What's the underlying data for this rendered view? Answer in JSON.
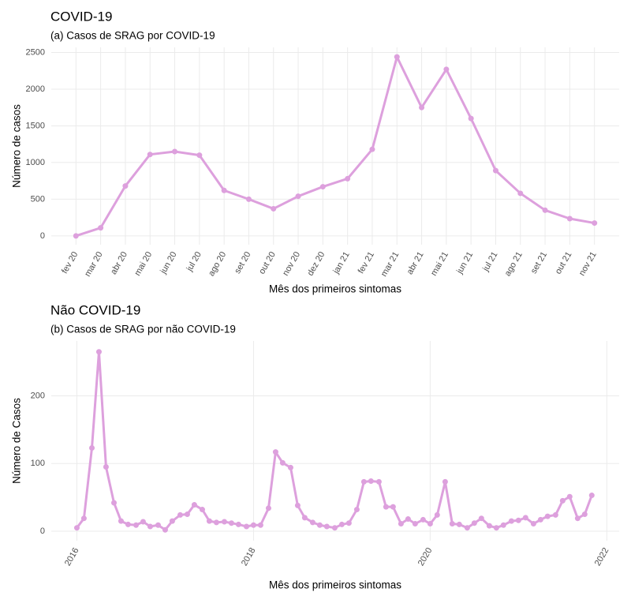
{
  "chart_data": [
    {
      "type": "line",
      "title": "COVID-19",
      "subtitle": "(a) Casos de SRAG por COVID-19",
      "x_label": "Mês dos primeiros sintomas",
      "y_label": "Número de casos",
      "categories": [
        "fev 20",
        "mar 20",
        "abr 20",
        "mai 20",
        "jun 20",
        "jul 20",
        "ago 20",
        "set 20",
        "out 20",
        "nov 20",
        "dez 20",
        "jan 21",
        "fev 21",
        "mar 21",
        "abr 21",
        "mai 21",
        "jun 21",
        "jul 21",
        "ago 21",
        "set 21",
        "out 21",
        "nov 21"
      ],
      "series": [
        {
          "name": "COVID-19",
          "color": "#dda0dd",
          "values": [
            0,
            110,
            680,
            1110,
            1150,
            1100,
            620,
            500,
            370,
            540,
            670,
            780,
            1180,
            2440,
            1750,
            2270,
            1600,
            890,
            580,
            350,
            235,
            175
          ]
        }
      ],
      "ylim": [
        -120,
        2570
      ],
      "yticks": [
        0,
        500,
        1000,
        1500,
        2000,
        2500
      ],
      "grid": true
    },
    {
      "type": "line",
      "title": "Não COVID-19",
      "subtitle": "(b) Casos de SRAG por não COVID-19",
      "x_label": "Mês dos primeiros sintomas",
      "y_label": "Número de Casos",
      "x": [
        2016.0,
        2016.08,
        2016.17,
        2016.25,
        2016.33,
        2016.42,
        2016.5,
        2016.58,
        2016.67,
        2016.75,
        2016.83,
        2016.92,
        2017.0,
        2017.08,
        2017.17,
        2017.25,
        2017.33,
        2017.42,
        2017.5,
        2017.58,
        2017.67,
        2017.75,
        2017.83,
        2017.92,
        2018.0,
        2018.08,
        2018.17,
        2018.25,
        2018.33,
        2018.42,
        2018.5,
        2018.58,
        2018.67,
        2018.75,
        2018.83,
        2018.92,
        2019.0,
        2019.08,
        2019.17,
        2019.25,
        2019.33,
        2019.42,
        2019.5,
        2019.58,
        2019.67,
        2019.75,
        2019.83,
        2019.92,
        2020.0,
        2020.08,
        2020.17,
        2020.25,
        2020.33,
        2020.42,
        2020.5,
        2020.58,
        2020.67,
        2020.75,
        2020.83,
        2020.92,
        2021.0,
        2021.08,
        2021.17,
        2021.25,
        2021.33,
        2021.42,
        2021.5,
        2021.58,
        2021.67,
        2021.75,
        2021.83
      ],
      "series": [
        {
          "name": "Não COVID-19",
          "color": "#dda0dd",
          "values": [
            5,
            19,
            123,
            265,
            95,
            42,
            15,
            10,
            9,
            14,
            7,
            9,
            2,
            15,
            24,
            25,
            39,
            32,
            15,
            13,
            14,
            12,
            10,
            7,
            9,
            9,
            34,
            117,
            101,
            94,
            38,
            20,
            13,
            9,
            7,
            5,
            10,
            12,
            32,
            73,
            74,
            73,
            36,
            36,
            11,
            18,
            11,
            17,
            11,
            24,
            73,
            11,
            10,
            5,
            12,
            19,
            8,
            5,
            9,
            15,
            16,
            20,
            11,
            17,
            22,
            24,
            45,
            51,
            19,
            25,
            53
          ]
        }
      ],
      "xlim": [
        2015.71,
        2022.14
      ],
      "xticks": [
        2016,
        2018,
        2020,
        2022
      ],
      "ylim": [
        -14,
        281
      ],
      "yticks": [
        0,
        100,
        200
      ],
      "grid": true
    }
  ]
}
